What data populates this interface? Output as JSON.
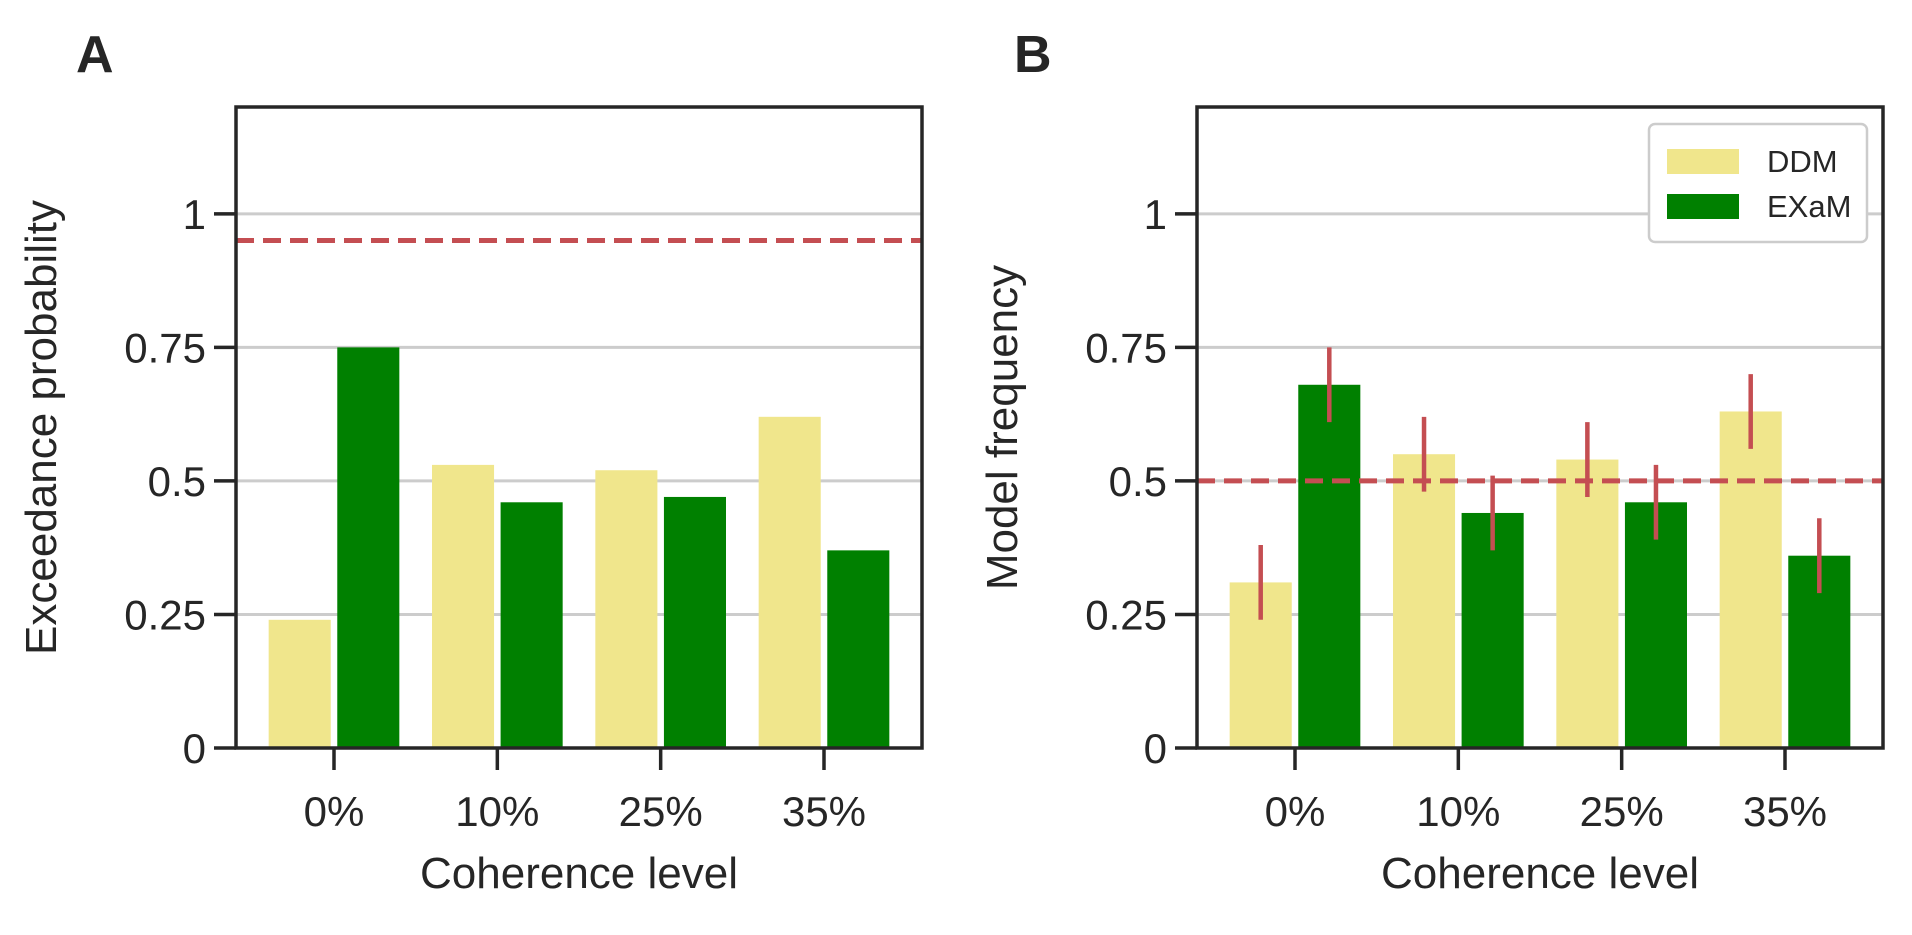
{
  "chart_data": [
    {
      "panel": "A",
      "type": "bar",
      "categories": [
        "0%",
        "10%",
        "25%",
        "35%"
      ],
      "series": [
        {
          "name": "DDM",
          "color": "#f0e68c",
          "values": [
            0.24,
            0.53,
            0.52,
            0.62
          ]
        },
        {
          "name": "EXaM",
          "color": "#008000",
          "values": [
            0.75,
            0.46,
            0.47,
            0.37
          ]
        }
      ],
      "xlabel": "Coherence level",
      "ylabel": "Exceedance probability",
      "ylim": [
        0,
        1.2
      ],
      "yticks": [
        0,
        0.25,
        0.5,
        0.75,
        1
      ],
      "ytick_labels": [
        "0",
        "0.25",
        "0.5",
        "0.75",
        "1"
      ],
      "reference_line": {
        "y": 0.95,
        "color": "#c44e52",
        "style": "dashed"
      },
      "grid": "horizontal",
      "legend": null
    },
    {
      "panel": "B",
      "type": "bar",
      "categories": [
        "0%",
        "10%",
        "25%",
        "35%"
      ],
      "series": [
        {
          "name": "DDM",
          "color": "#f0e68c",
          "values": [
            0.31,
            0.55,
            0.54,
            0.63
          ],
          "error": [
            0.07,
            0.07,
            0.07,
            0.07
          ]
        },
        {
          "name": "EXaM",
          "color": "#008000",
          "values": [
            0.68,
            0.44,
            0.46,
            0.36
          ],
          "error": [
            0.07,
            0.07,
            0.07,
            0.07
          ]
        }
      ],
      "xlabel": "Coherence level",
      "ylabel": "Model frequency",
      "ylim": [
        0,
        1.2
      ],
      "yticks": [
        0,
        0.25,
        0.5,
        0.75,
        1
      ],
      "ytick_labels": [
        "0",
        "0.25",
        "0.5",
        "0.75",
        "1"
      ],
      "reference_line": {
        "y": 0.5,
        "color": "#c44e52",
        "style": "dashed"
      },
      "error_bar_color": "#c44e52",
      "grid": "horizontal",
      "legend": "top-right"
    }
  ]
}
